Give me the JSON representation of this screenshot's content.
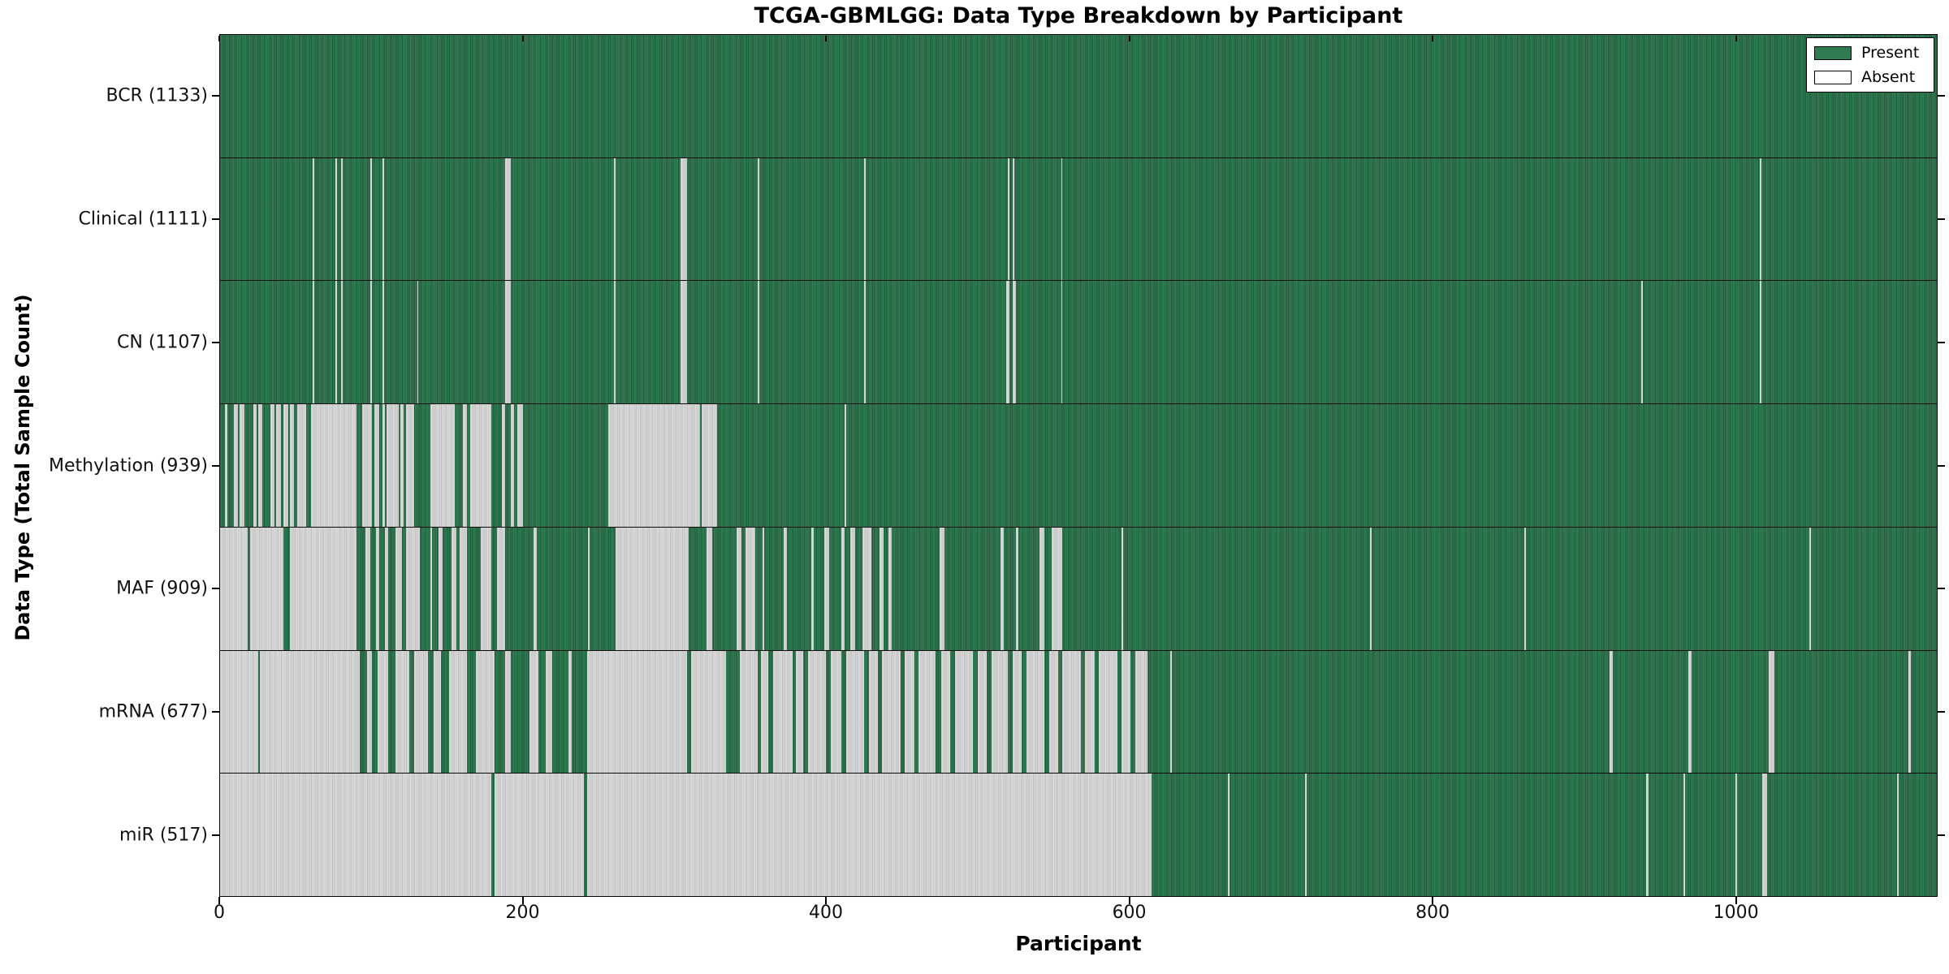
{
  "chart_data": {
    "type": "heatmap",
    "title": "TCGA-GBMLGG: Data Type Breakdown by Participant",
    "xlabel": "Participant",
    "ylabel": "Data Type (Total Sample Count)",
    "x_range": [
      0,
      1133
    ],
    "x_ticks": [
      0,
      200,
      400,
      600,
      800,
      1000
    ],
    "grid": false,
    "legend_position": "upper right",
    "legend_items": [
      {
        "label": "Present",
        "swatch": "#2f7c52"
      },
      {
        "label": "Absent",
        "swatch": "#ffffff"
      }
    ],
    "colors": {
      "present": "#2f7c52",
      "absent": "#d7d7d7",
      "border": "#000000",
      "background": "#ffffff"
    },
    "rows": [
      {
        "name": "BCR",
        "label": "BCR (1133)",
        "total": 1133,
        "absent_ranges": []
      },
      {
        "name": "Clinical",
        "label": "Clinical (1111)",
        "total": 1111,
        "absent_ranges": [
          [
            61,
            62
          ],
          [
            76,
            77
          ],
          [
            80,
            81
          ],
          [
            99,
            100
          ],
          [
            107,
            108
          ],
          [
            188,
            192
          ],
          [
            260,
            261
          ],
          [
            304,
            308
          ],
          [
            355,
            356
          ],
          [
            425,
            426
          ],
          [
            520,
            521
          ],
          [
            523,
            524
          ],
          [
            555,
            556
          ],
          [
            1016,
            1017
          ]
        ]
      },
      {
        "name": "CN",
        "label": "CN (1107)",
        "total": 1107,
        "absent_ranges": [
          [
            61,
            62
          ],
          [
            76,
            77
          ],
          [
            80,
            81
          ],
          [
            99,
            100
          ],
          [
            107,
            108
          ],
          [
            130,
            131
          ],
          [
            188,
            192
          ],
          [
            260,
            261
          ],
          [
            304,
            308
          ],
          [
            355,
            356
          ],
          [
            425,
            426
          ],
          [
            519,
            521
          ],
          [
            523,
            525
          ],
          [
            555,
            556
          ],
          [
            938,
            939
          ],
          [
            1016,
            1017
          ]
        ]
      },
      {
        "name": "Methylation",
        "label": "Methylation (939)",
        "total": 939,
        "absent_ranges": [
          [
            3,
            5
          ],
          [
            9,
            12
          ],
          [
            13,
            16
          ],
          [
            22,
            24
          ],
          [
            25,
            28
          ],
          [
            33,
            36
          ],
          [
            37,
            40
          ],
          [
            42,
            45
          ],
          [
            46,
            49
          ],
          [
            51,
            57
          ],
          [
            60,
            90
          ],
          [
            94,
            100
          ],
          [
            102,
            105
          ],
          [
            107,
            109
          ],
          [
            110,
            118
          ],
          [
            119,
            121
          ],
          [
            123,
            128
          ],
          [
            139,
            155
          ],
          [
            160,
            163
          ],
          [
            165,
            179
          ],
          [
            186,
            188
          ],
          [
            192,
            194
          ],
          [
            196,
            200
          ],
          [
            256,
            317
          ],
          [
            318,
            328
          ],
          [
            412,
            413
          ]
        ]
      },
      {
        "name": "MAF",
        "label": "MAF (909)",
        "total": 909,
        "absent_ranges": [
          [
            0,
            18
          ],
          [
            20,
            42
          ],
          [
            46,
            90
          ],
          [
            96,
            99
          ],
          [
            103,
            105
          ],
          [
            109,
            111
          ],
          [
            116,
            120
          ],
          [
            123,
            132
          ],
          [
            139,
            140
          ],
          [
            144,
            147
          ],
          [
            153,
            156
          ],
          [
            158,
            163
          ],
          [
            172,
            179
          ],
          [
            183,
            188
          ],
          [
            207,
            209
          ],
          [
            243,
            244
          ],
          [
            261,
            309
          ],
          [
            321,
            325
          ],
          [
            341,
            344
          ],
          [
            347,
            353
          ],
          [
            358,
            359
          ],
          [
            372,
            374
          ],
          [
            390,
            392
          ],
          [
            399,
            402
          ],
          [
            410,
            412
          ],
          [
            416,
            419
          ],
          [
            424,
            430
          ],
          [
            435,
            438
          ],
          [
            441,
            443
          ],
          [
            475,
            478
          ],
          [
            515,
            517
          ],
          [
            525,
            527
          ],
          [
            541,
            544
          ],
          [
            549,
            556
          ],
          [
            595,
            596
          ],
          [
            759,
            760
          ],
          [
            861,
            862
          ],
          [
            1049,
            1050
          ]
        ]
      },
      {
        "name": "mRNA",
        "label": "mRNA (677)",
        "total": 677,
        "absent_ranges": [
          [
            0,
            25
          ],
          [
            26,
            92
          ],
          [
            97,
            100
          ],
          [
            104,
            111
          ],
          [
            116,
            125
          ],
          [
            128,
            137
          ],
          [
            141,
            146
          ],
          [
            151,
            163
          ],
          [
            169,
            181
          ],
          [
            188,
            192
          ],
          [
            204,
            210
          ],
          [
            215,
            219
          ],
          [
            230,
            232
          ],
          [
            242,
            308
          ],
          [
            311,
            334
          ],
          [
            343,
            355
          ],
          [
            357,
            362
          ],
          [
            365,
            378
          ],
          [
            380,
            385
          ],
          [
            388,
            400
          ],
          [
            403,
            410
          ],
          [
            413,
            425
          ],
          [
            428,
            434
          ],
          [
            437,
            449
          ],
          [
            452,
            458
          ],
          [
            461,
            472
          ],
          [
            476,
            482
          ],
          [
            485,
            497
          ],
          [
            500,
            506
          ],
          [
            509,
            520
          ],
          [
            523,
            529
          ],
          [
            532,
            544
          ],
          [
            547,
            553
          ],
          [
            556,
            568
          ],
          [
            571,
            577
          ],
          [
            580,
            592
          ],
          [
            595,
            601
          ],
          [
            604,
            612
          ],
          [
            627,
            628
          ],
          [
            917,
            919
          ],
          [
            969,
            971
          ],
          [
            1022,
            1026
          ],
          [
            1114,
            1116
          ]
        ]
      },
      {
        "name": "miR",
        "label": "miR (517)",
        "total": 517,
        "absent_ranges": [
          [
            0,
            179
          ],
          [
            181,
            240
          ],
          [
            242,
            615
          ],
          [
            665,
            666
          ],
          [
            716,
            717
          ],
          [
            941,
            943
          ],
          [
            966,
            967
          ],
          [
            1000,
            1001
          ],
          [
            1018,
            1021
          ],
          [
            1107,
            1108
          ]
        ]
      }
    ]
  }
}
